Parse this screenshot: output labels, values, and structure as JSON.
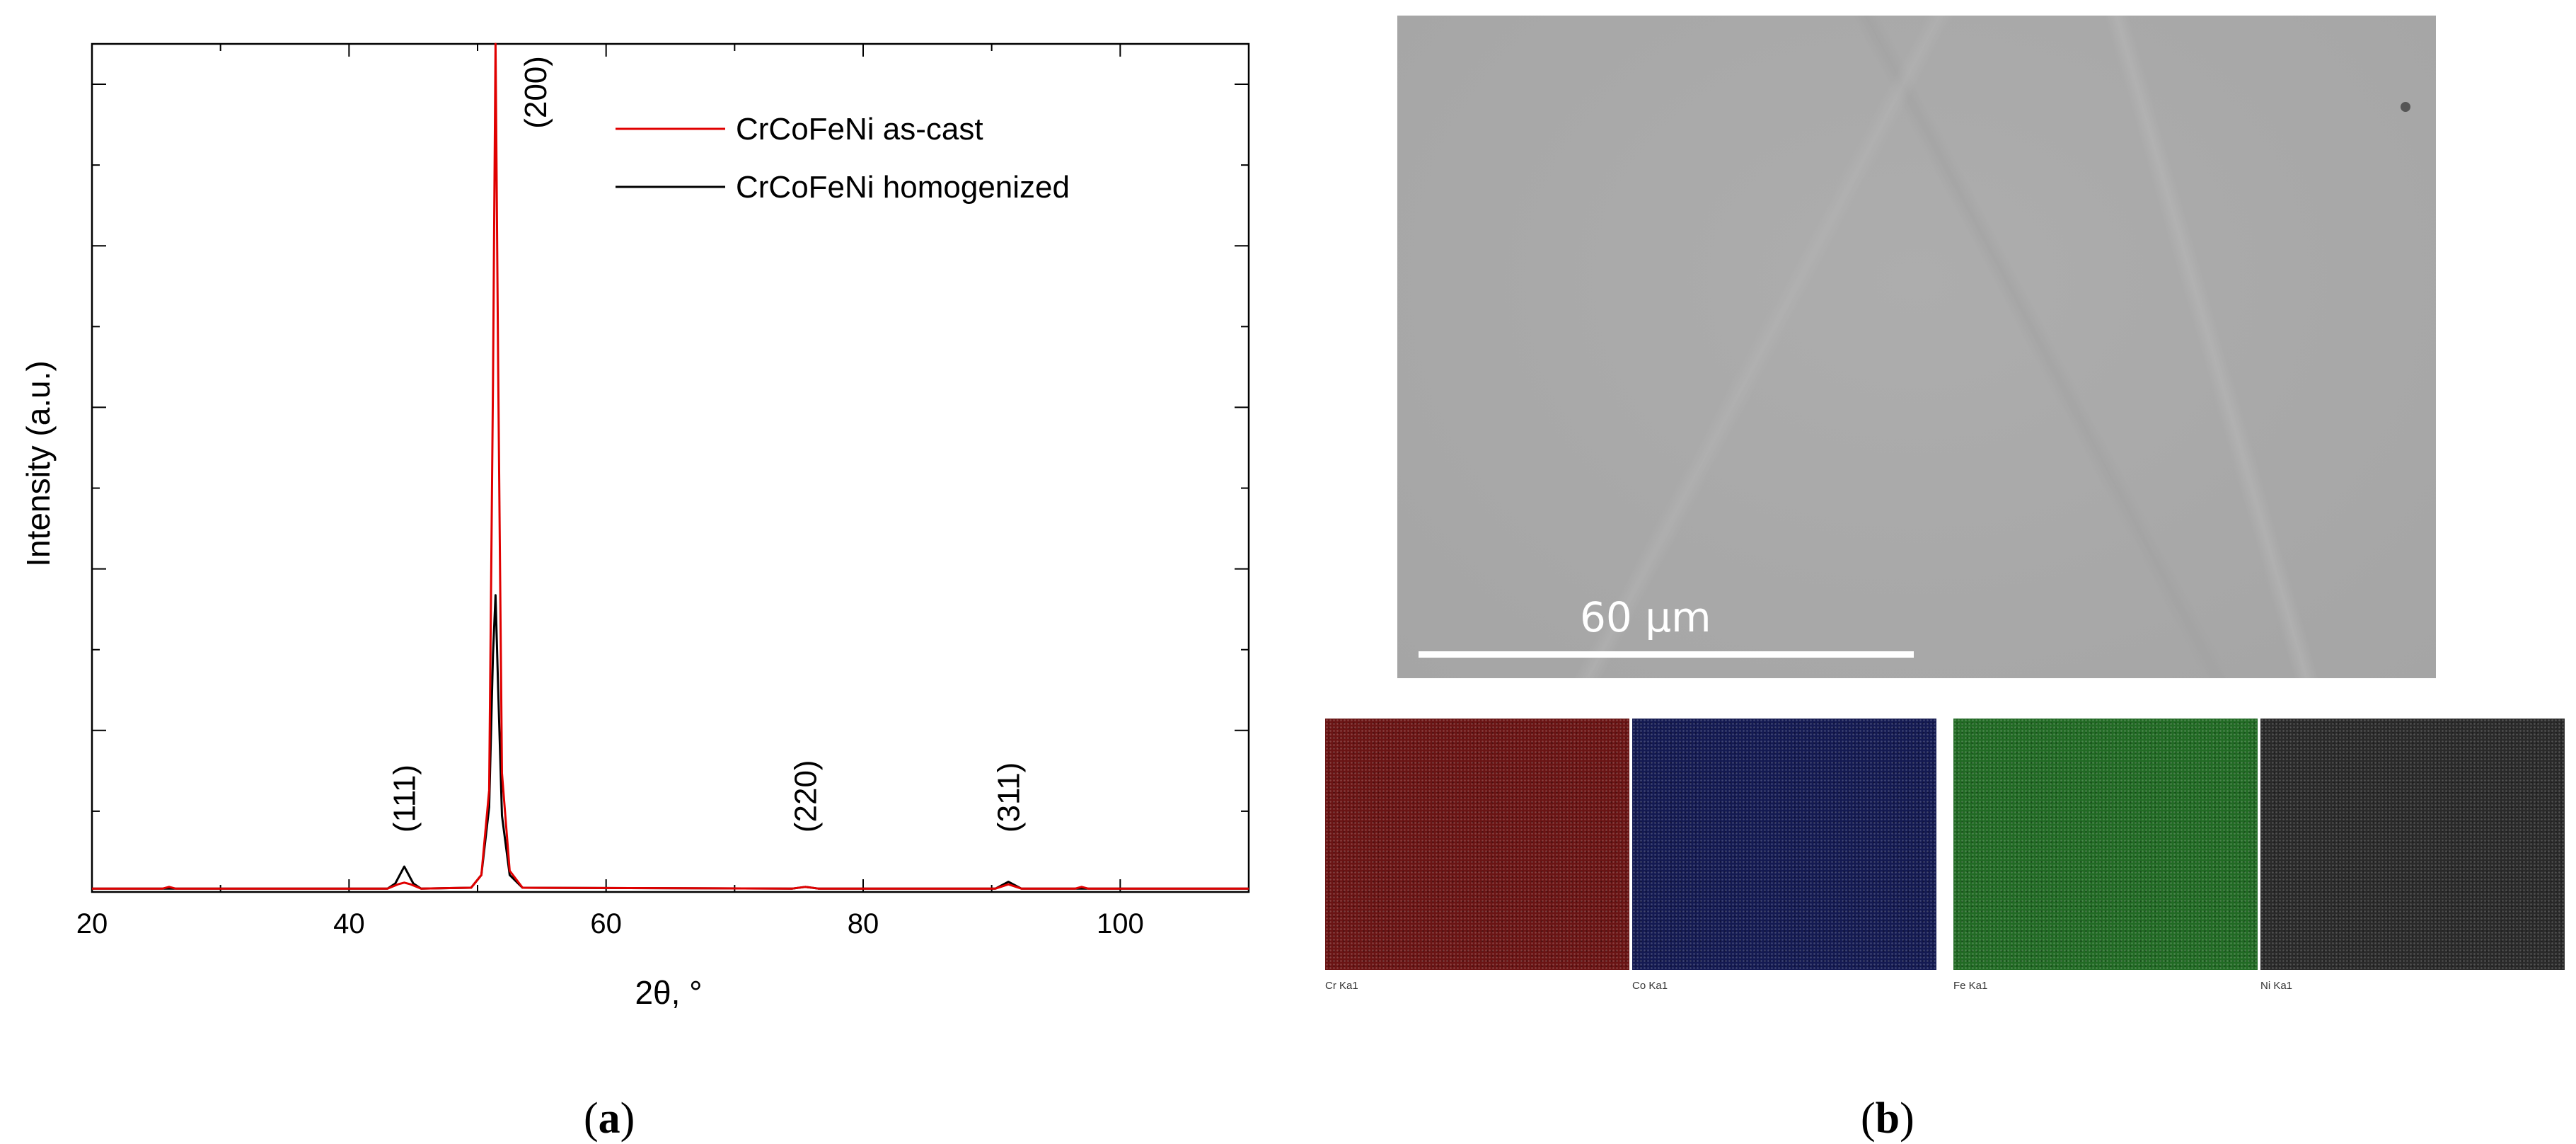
{
  "chart_data": {
    "type": "line",
    "xlabel": "2θ, °",
    "ylabel": "Intensity (a.u.)",
    "xlim": [
      20,
      110
    ],
    "ylim": [
      0,
      100
    ],
    "xticks": [
      20,
      40,
      60,
      80,
      100
    ],
    "legend_position": "top-right",
    "series": [
      {
        "name": "CrCoFeNi as-cast",
        "color": "#e00000",
        "x": [
          20,
          25.5,
          26,
          26.5,
          43,
          43.8,
          44.3,
          44.8,
          45.6,
          49.5,
          50.3,
          50.9,
          51.2,
          51.4,
          51.6,
          51.9,
          52.5,
          53.5,
          74.5,
          75.5,
          76.5,
          90.3,
          91.3,
          92.3,
          96.5,
          97,
          97.5,
          110
        ],
        "y": [
          0.4,
          0.4,
          0.6,
          0.4,
          0.4,
          0.9,
          1.1,
          0.9,
          0.4,
          0.5,
          2.0,
          12,
          60,
          100,
          62,
          14,
          2.5,
          0.5,
          0.4,
          0.6,
          0.4,
          0.4,
          0.9,
          0.4,
          0.4,
          0.6,
          0.4,
          0.4
        ]
      },
      {
        "name": "CrCoFeNi homogenized",
        "color": "#000000",
        "x": [
          20,
          43,
          43.6,
          44.3,
          45.0,
          45.6,
          49.5,
          50.3,
          50.9,
          51.2,
          51.4,
          51.6,
          51.9,
          52.5,
          53.5,
          74.5,
          75.5,
          76.5,
          90.3,
          91.3,
          92.3,
          110
        ],
        "y": [
          0.4,
          0.4,
          1.0,
          3.0,
          1.0,
          0.4,
          0.5,
          2.0,
          10,
          28,
          35,
          24,
          9,
          2.0,
          0.5,
          0.4,
          0.6,
          0.4,
          0.4,
          1.2,
          0.4,
          0.4
        ]
      }
    ],
    "annotations": [
      {
        "text": "(111)",
        "x": 44.3,
        "y": 7
      },
      {
        "text": "(200)",
        "x": 54.5,
        "y": 90
      },
      {
        "text": "(220)",
        "x": 75.5,
        "y": 7
      },
      {
        "text": "(311)",
        "x": 91.3,
        "y": 7
      }
    ]
  },
  "panel_labels": {
    "a": "a",
    "b": "b"
  },
  "sem": {
    "scale_label": "60 μm"
  },
  "eds_maps": [
    {
      "label": "Cr Ka1",
      "color": "#6a1414"
    },
    {
      "label": "Co Ka1",
      "color": "#141a52"
    },
    {
      "label": "Fe Ka1",
      "color": "#216a24"
    },
    {
      "label": "Ni Ka1",
      "color": "#2a2a2a"
    }
  ]
}
